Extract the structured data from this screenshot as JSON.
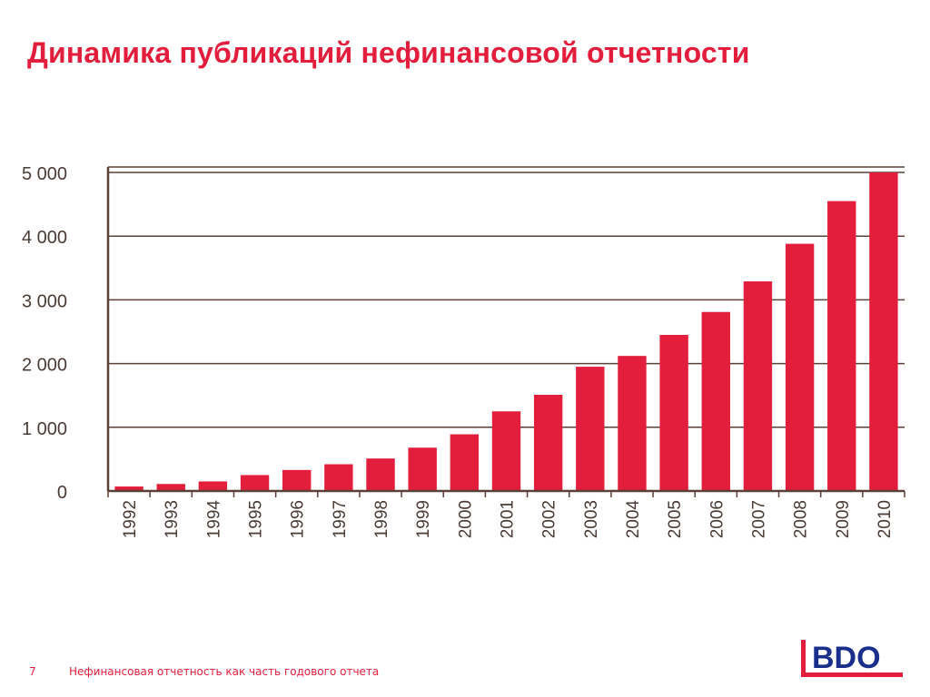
{
  "title": "Динамика публикаций нефинансовой отчетности",
  "footer": {
    "page_number": "7",
    "text": "Нефинансовая отчетность как часть годового отчета"
  },
  "logo": {
    "text": "BDO"
  },
  "colors": {
    "accent": "#e31e3c",
    "bar": "#e31e3c",
    "axis": "#5a4036",
    "grid": "#5a4036",
    "tick_text": "#4a3a34",
    "logo_blue": "#1a2f8c"
  },
  "chart_data": {
    "type": "bar",
    "title": "",
    "xlabel": "",
    "ylabel": "",
    "categories": [
      "1992",
      "1993",
      "1994",
      "1995",
      "1996",
      "1997",
      "1998",
      "1999",
      "2000",
      "2001",
      "2002",
      "2003",
      "2004",
      "2005",
      "2006",
      "2007",
      "2008",
      "2009",
      "2010"
    ],
    "values": [
      70,
      110,
      150,
      250,
      330,
      420,
      510,
      680,
      890,
      1250,
      1510,
      1950,
      2120,
      2450,
      2810,
      3290,
      3880,
      4550,
      5000
    ],
    "ylim": [
      0,
      5000
    ],
    "yticks": [
      0,
      1000,
      2000,
      3000,
      4000,
      5000
    ],
    "ytick_labels": [
      "0",
      "1 000",
      "2 000",
      "3 000",
      "4 000",
      "5 000"
    ],
    "grid": true,
    "legend": "none"
  }
}
